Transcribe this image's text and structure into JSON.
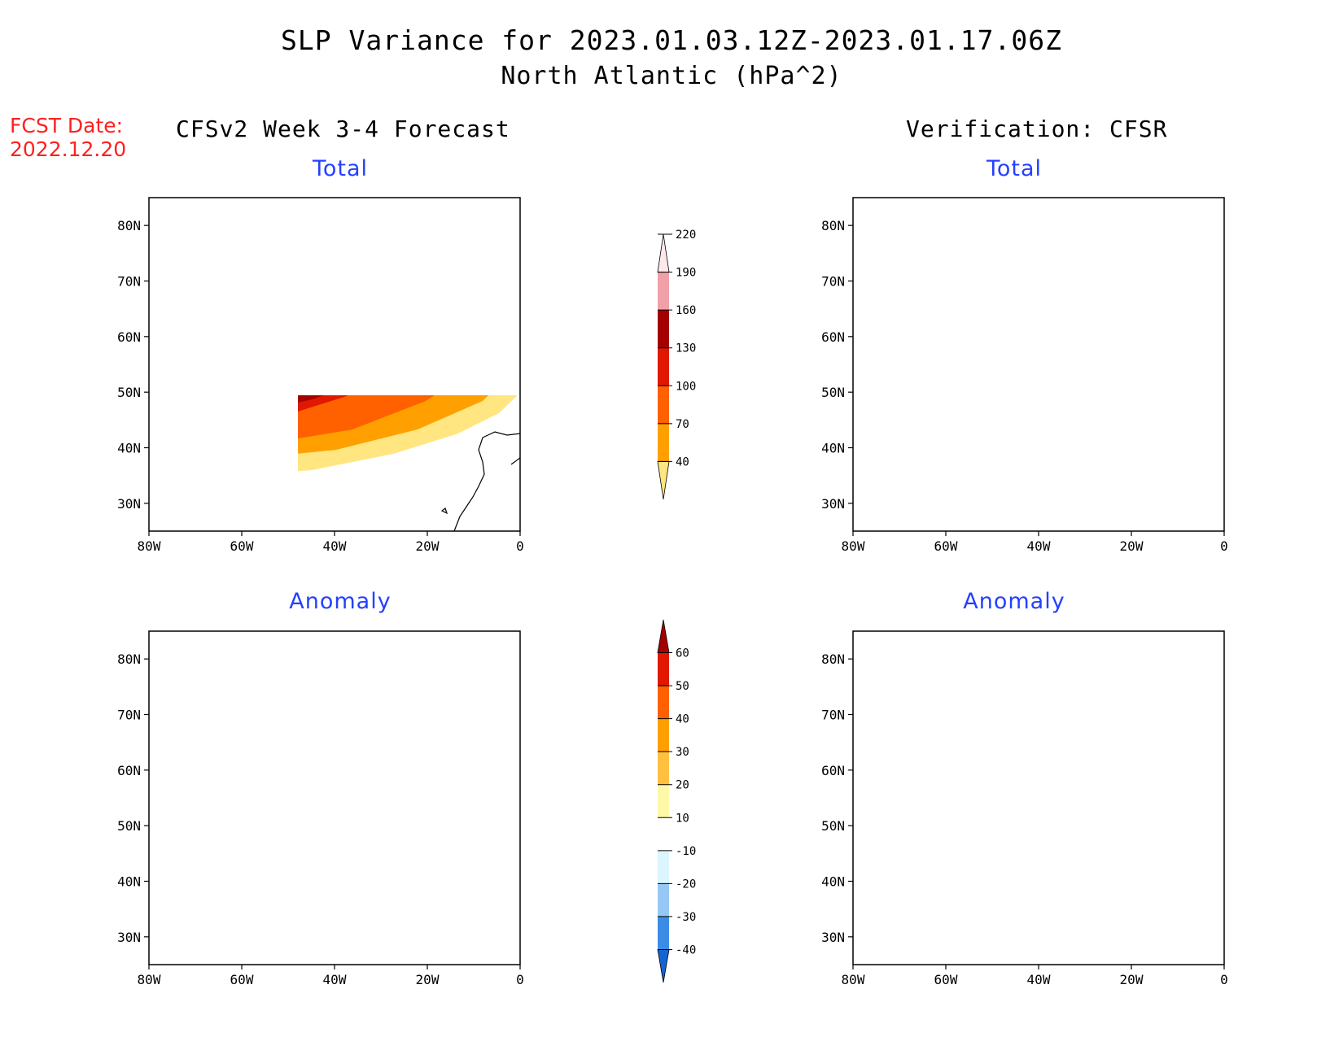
{
  "title": {
    "line1": "SLP Variance for 2023.01.03.12Z-2023.01.17.06Z",
    "line2": "North Atlantic (hPa^2)"
  },
  "fcst_date": {
    "label": "FCST Date:",
    "value": "2022.12.20"
  },
  "columns": {
    "left": "CFSv2 Week 3-4 Forecast",
    "right": "Verification: CFSR"
  },
  "panels": {
    "total": "Total",
    "anomaly": "Anomaly"
  },
  "axes": {
    "lon_labels": [
      "80W",
      "60W",
      "40W",
      "20W",
      "0"
    ],
    "lat_labels": [
      "80N",
      "70N",
      "60N",
      "50N",
      "40N",
      "30N"
    ],
    "lon_range": [
      -80,
      0
    ],
    "lat_range": [
      25,
      85
    ]
  },
  "colorbars": {
    "total": {
      "levels": [
        "40",
        "70",
        "100",
        "130",
        "160",
        "190",
        "220"
      ],
      "colors": [
        "#ffe680",
        "#ffa000",
        "#ff6000",
        "#e01800",
        "#a50000",
        "#f0a0a8",
        "#fde8ec"
      ]
    },
    "anomaly": {
      "levels": [
        "-40",
        "-30",
        "-20",
        "-10",
        "10",
        "20",
        "30",
        "40",
        "50",
        "60"
      ],
      "colors": [
        "#1464d2",
        "#3c8ce6",
        "#96c8f5",
        "#dcf5ff",
        "#ffffff",
        "#fff8a8",
        "#ffc040",
        "#ffa000",
        "#ff6000",
        "#e01800",
        "#a50000"
      ]
    }
  }
}
